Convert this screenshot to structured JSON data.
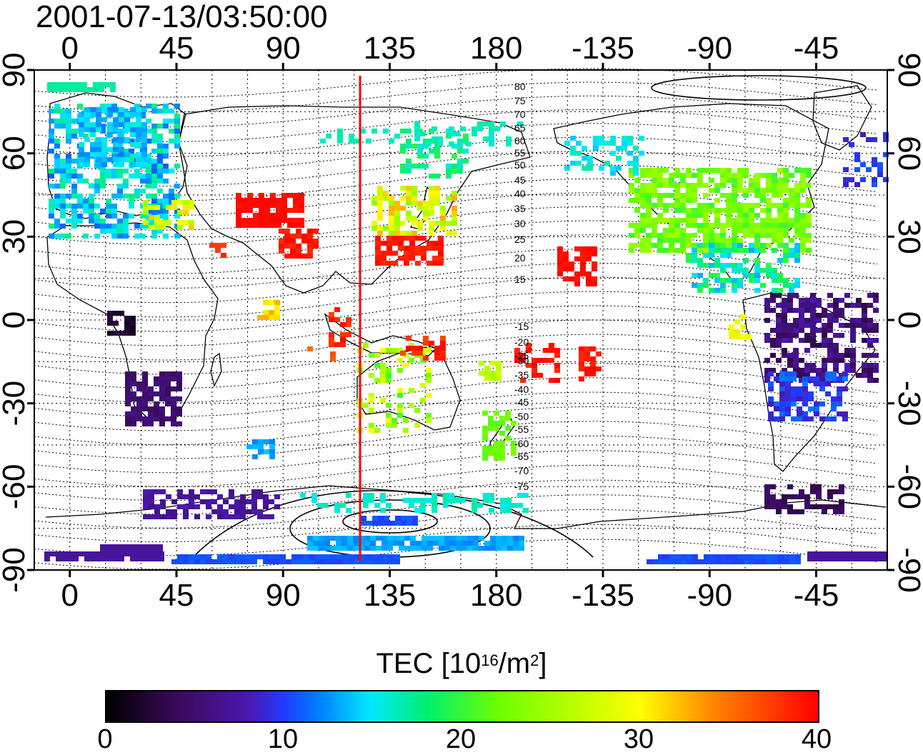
{
  "title": "2001-07-13/03:50:00",
  "map": {
    "x_ticks_top": [
      "0",
      "45",
      "90",
      "135",
      "180",
      "-135",
      "-90",
      "-45"
    ],
    "x_ticks_bottom": [
      "0",
      "45",
      "90",
      "135",
      "180",
      "-135",
      "-90",
      "-45"
    ],
    "y_ticks_left": [
      "90",
      "60",
      "30",
      "0",
      "-30",
      "-60",
      "-90"
    ],
    "y_ticks_right": [
      "90",
      "60",
      "30",
      "0",
      "-30",
      "-60",
      "-90"
    ],
    "magnetic_lat_labels": [
      "80",
      "75",
      "70",
      "65",
      "60",
      "55",
      "50",
      "45",
      "40",
      "35",
      "30",
      "25",
      "20",
      "15",
      "-15",
      "-20",
      "-25",
      "-30",
      "-35",
      "-40",
      "-45",
      "-50",
      "-55",
      "-60",
      "-65",
      "-70",
      "-75"
    ],
    "local_noon_longitude": 122.5,
    "line_color": "#ff0000"
  },
  "colorbar": {
    "label_main": "TEC  [10",
    "label_exp1": "16",
    "label_mid": "/m",
    "label_exp2": "2",
    "label_end": "]",
    "ticks": [
      "0",
      "10",
      "20",
      "30",
      "40"
    ],
    "range": [
      0,
      40
    ]
  }
}
